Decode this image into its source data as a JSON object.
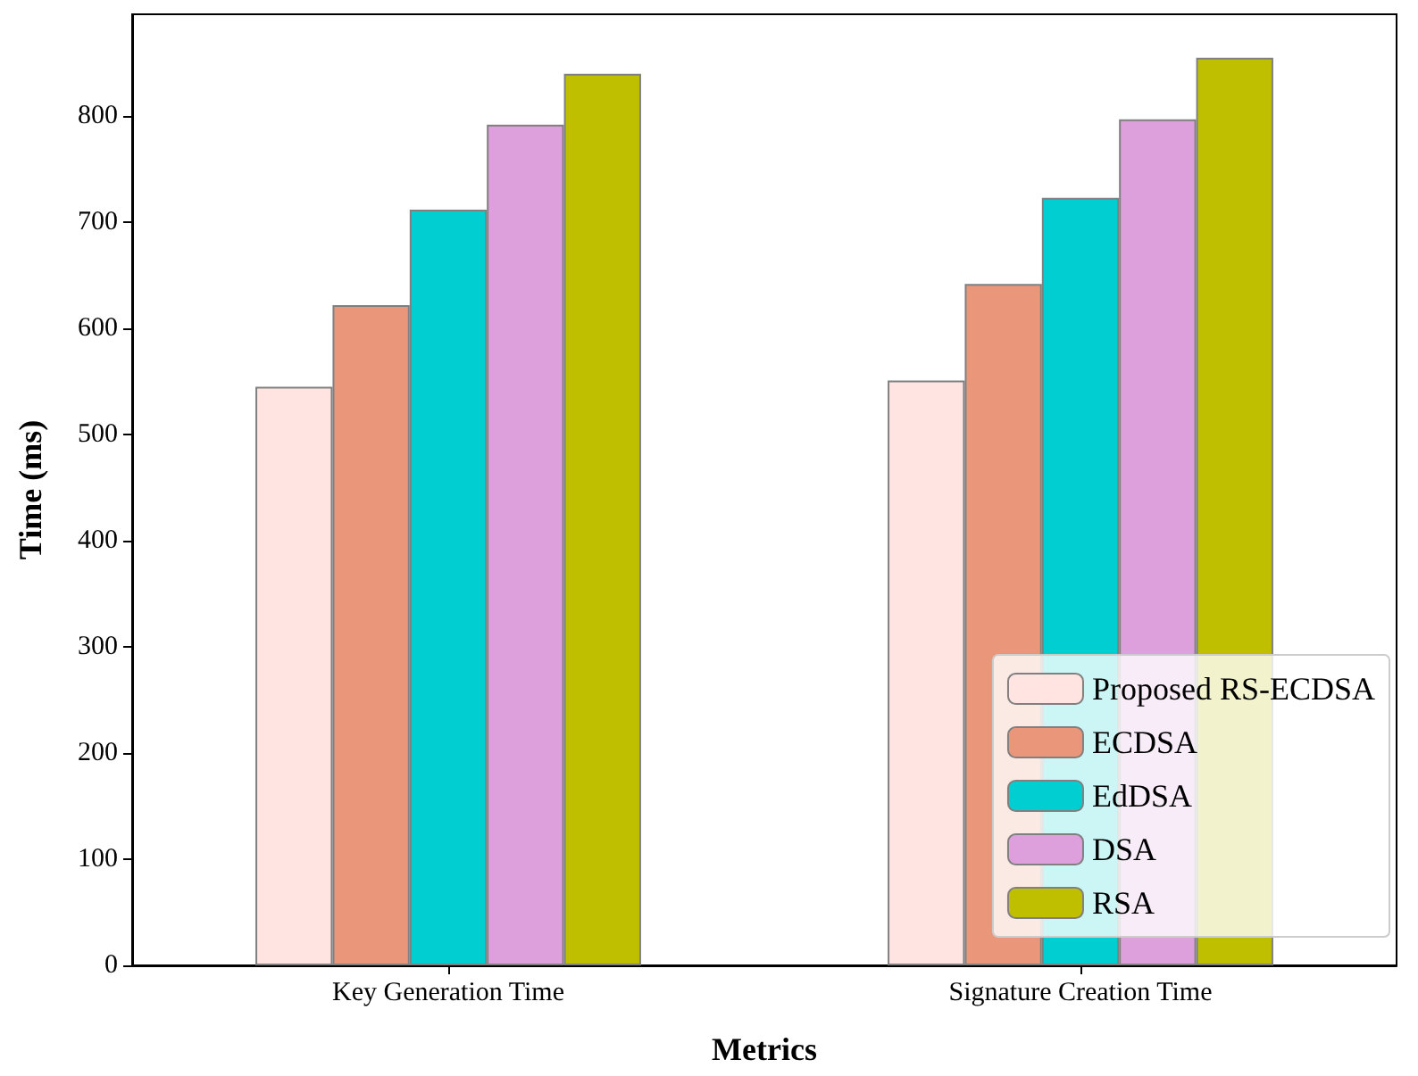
{
  "chart_data": {
    "type": "bar",
    "xlabel": "Metrics",
    "ylabel": "Time (ms)",
    "categories": [
      "Key Generation Time",
      "Signature Creation Time"
    ],
    "series": [
      {
        "name": "Proposed RS-ECDSA",
        "color": "#ffe4e1",
        "values": [
          545,
          551
        ]
      },
      {
        "name": "ECDSA",
        "color": "#e9967a",
        "values": [
          622,
          642
        ]
      },
      {
        "name": "EdDSA",
        "color": "#00ced1",
        "values": [
          712,
          723
        ]
      },
      {
        "name": "DSA",
        "color": "#dda0dd",
        "values": [
          792,
          797
        ]
      },
      {
        "name": "RSA",
        "color": "#bfbf00",
        "values": [
          840,
          855
        ]
      }
    ],
    "ylim": [
      0,
      896
    ],
    "yticks": [
      0,
      100,
      200,
      300,
      400,
      500,
      600,
      700,
      800
    ],
    "grid": false,
    "legend": "bottom right"
  }
}
